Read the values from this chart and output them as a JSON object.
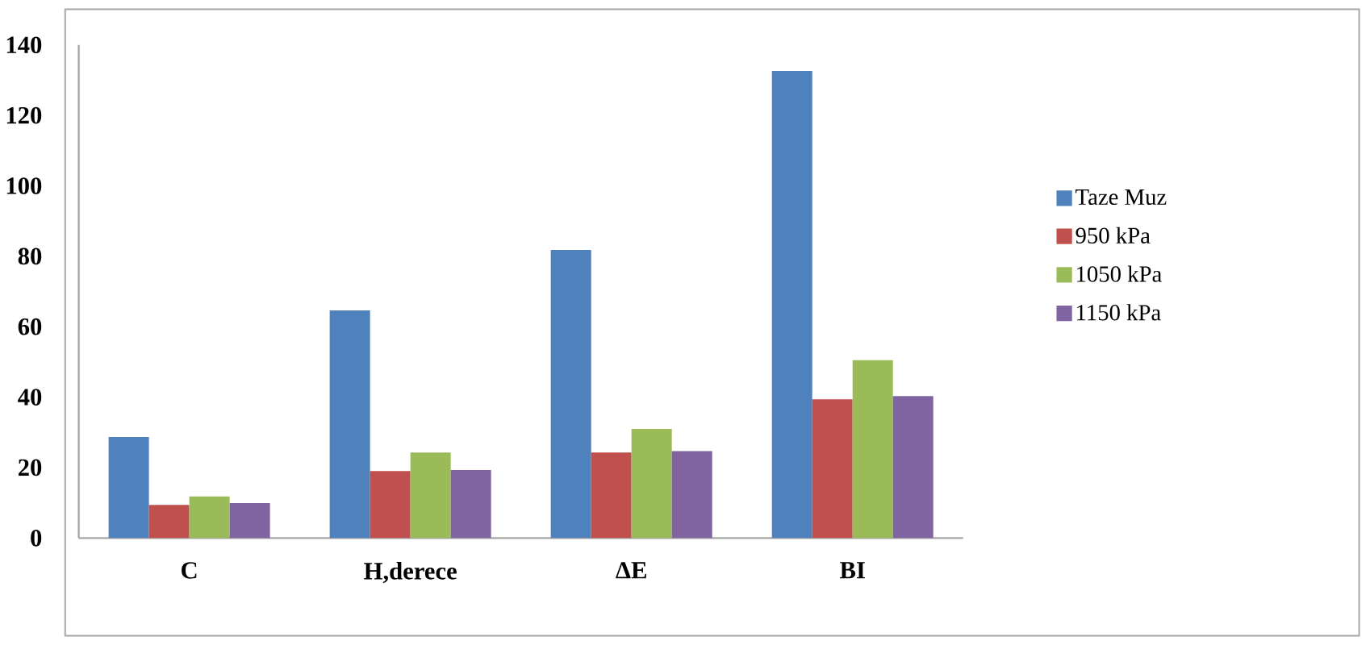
{
  "chart_data": {
    "type": "bar",
    "categories": [
      "C",
      "H,derece",
      "ΔE",
      "BI"
    ],
    "series": [
      {
        "name": "Taze Muz",
        "color": "#4f81bd",
        "values": [
          28.7,
          64.6,
          81.8,
          132.6
        ]
      },
      {
        "name": "950 kPa",
        "color": "#c0504d",
        "values": [
          9.4,
          19.0,
          24.3,
          39.4
        ]
      },
      {
        "name": "1050 kPa",
        "color": "#9bbb59",
        "values": [
          11.8,
          24.3,
          31.0,
          50.5
        ]
      },
      {
        "name": "1150 kPa",
        "color": "#8064a2",
        "values": [
          9.9,
          19.3,
          24.7,
          40.3
        ]
      }
    ],
    "ylim": [
      0,
      140
    ],
    "yticks": [
      0,
      20,
      40,
      60,
      80,
      100,
      120,
      140
    ],
    "legend": "right"
  }
}
